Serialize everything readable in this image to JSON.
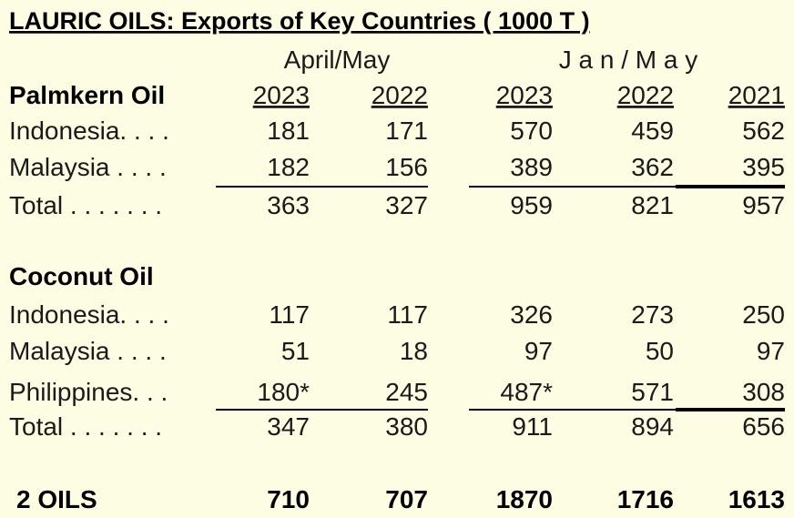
{
  "title": "LAURIC OILS:  Exports of Key Countries  ( 1000 T )",
  "period_headers": [
    "April/May",
    "J a n / M a y"
  ],
  "sections": [
    {
      "name": "Palmkern Oil",
      "columns": [
        "2023",
        "2022",
        "2023",
        "2022",
        "2021"
      ],
      "rows": [
        {
          "label": "Indonesia. . . .",
          "values": [
            "181",
            "171",
            "570",
            "459",
            "562"
          ]
        },
        {
          "label": "Malaysia . . . .",
          "values": [
            "182",
            "156",
            "389",
            "362",
            "395"
          ]
        }
      ],
      "total": {
        "label": "Total . . . . . . .",
        "values": [
          "363",
          "327",
          "959",
          "821",
          "957"
        ]
      }
    },
    {
      "name": "Coconut Oil",
      "rows": [
        {
          "label": "Indonesia. . . .",
          "values": [
            "117",
            "117",
            "326",
            "273",
            "250"
          ]
        },
        {
          "label": "Malaysia . . . .",
          "values": [
            "51",
            "18",
            "97",
            "50",
            "97"
          ]
        },
        {
          "label": "Philippines. . .",
          "values": [
            "180*",
            "245",
            "487*",
            "571",
            "308"
          ]
        }
      ],
      "total": {
        "label": "Total . . . . . . .",
        "values": [
          "347",
          "380",
          "911",
          "894",
          "656"
        ]
      }
    }
  ],
  "grand_total": {
    "label": "2 OILS",
    "values": [
      "710",
      "707",
      "1870",
      "1716",
      "1613"
    ]
  }
}
